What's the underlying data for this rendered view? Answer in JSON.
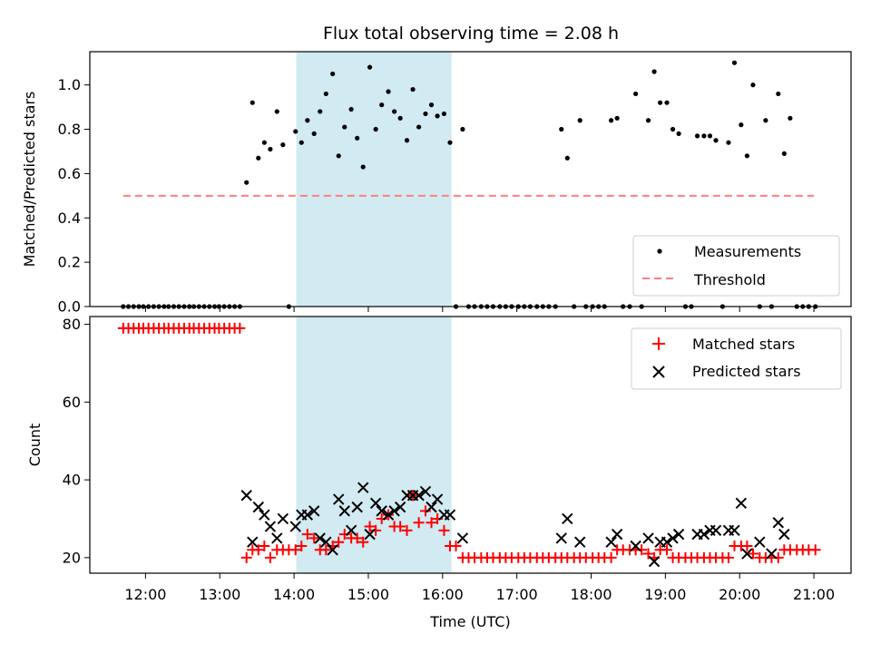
{
  "figure": {
    "title": "Flux total observing time = 2.08 h"
  },
  "chart_data": [
    {
      "type": "scatter",
      "panel": "top",
      "ylabel": "Matched/Predicted stars",
      "xlabel": "",
      "xlim": [
        11.25,
        21.5
      ],
      "ylim": [
        0.0,
        1.15
      ],
      "yticks": [
        0.0,
        0.2,
        0.4,
        0.6,
        0.8,
        1.0
      ],
      "xticks": [
        12,
        13,
        14,
        15,
        16,
        17,
        18,
        19,
        20,
        21
      ],
      "xtick_labels": [
        "12:00",
        "13:00",
        "14:00",
        "15:00",
        "16:00",
        "17:00",
        "18:00",
        "19:00",
        "20:00",
        "21:00"
      ],
      "shaded_interval": {
        "x": [
          14.03,
          16.12
        ],
        "color": "#add8e6"
      },
      "legend_position": "lower right",
      "series": [
        {
          "name": "Measurements",
          "marker": "dot",
          "color": "#000000",
          "x": [
            11.7,
            11.77,
            11.84,
            11.91,
            11.97,
            12.04,
            12.11,
            12.18,
            12.25,
            12.31,
            12.38,
            12.45,
            12.52,
            12.59,
            12.65,
            12.72,
            12.79,
            12.86,
            12.93,
            12.99,
            13.06,
            13.13,
            13.2,
            13.27,
            13.36,
            13.44,
            13.52,
            13.6,
            13.68,
            13.77,
            13.85,
            13.93,
            14.02,
            14.1,
            14.18,
            14.27,
            14.35,
            14.43,
            14.52,
            14.6,
            14.68,
            14.77,
            14.85,
            14.93,
            15.02,
            15.1,
            15.18,
            15.27,
            15.35,
            15.43,
            15.52,
            15.6,
            15.68,
            15.77,
            15.85,
            15.93,
            16.02,
            16.1,
            16.18,
            16.27,
            16.35,
            16.43,
            16.52,
            16.6,
            16.68,
            16.77,
            16.85,
            16.93,
            17.02,
            17.1,
            17.18,
            17.27,
            17.35,
            17.43,
            17.52,
            17.6,
            17.68,
            17.77,
            17.85,
            17.93,
            18.02,
            18.1,
            18.18,
            18.27,
            18.35,
            18.43,
            18.52,
            18.6,
            18.68,
            18.77,
            18.85,
            18.93,
            19.02,
            19.1,
            19.18,
            19.27,
            19.35,
            19.43,
            19.52,
            19.6,
            19.68,
            19.77,
            19.85,
            19.93,
            20.02,
            20.1,
            20.18,
            20.27,
            20.35,
            20.43,
            20.52,
            20.6,
            20.68,
            20.77,
            20.85,
            20.93,
            21.02
          ],
          "y": [
            0,
            0,
            0,
            0,
            0,
            0,
            0,
            0,
            0,
            0,
            0,
            0,
            0,
            0,
            0,
            0,
            0,
            0,
            0,
            0,
            0,
            0,
            0,
            0,
            0.56,
            0.92,
            0.67,
            0.74,
            0.71,
            0.88,
            0.73,
            0.0,
            0.79,
            0.74,
            0.84,
            0.78,
            0.88,
            0.96,
            1.05,
            0.68,
            0.81,
            0.89,
            0.76,
            0.63,
            1.08,
            0.8,
            0.91,
            0.97,
            0.88,
            0.85,
            0.75,
            0.98,
            0.81,
            0.87,
            0.91,
            0.86,
            0.87,
            0.74,
            0,
            0.8,
            0,
            0,
            0,
            0,
            0,
            0,
            0,
            0,
            0,
            0,
            0,
            0,
            0,
            0,
            0,
            0.8,
            0.67,
            0,
            0.84,
            0,
            0,
            0,
            0,
            0.84,
            0.85,
            0,
            0,
            0.96,
            0,
            0.84,
            1.06,
            0.92,
            0.92,
            0.8,
            0.78,
            0,
            0,
            0.77,
            0.77,
            0.77,
            0.75,
            0,
            0.74,
            1.1,
            0.82,
            0.68,
            1.0,
            0,
            0.84,
            0,
            0.96,
            0.69,
            0.85,
            0,
            0,
            0,
            0
          ]
        },
        {
          "name": "Threshold",
          "marker": "dashed-line",
          "color": "#ff7f7f",
          "x": [
            11.7,
            21.0
          ],
          "y": [
            0.5,
            0.5
          ]
        }
      ]
    },
    {
      "type": "scatter",
      "panel": "bottom",
      "ylabel": "Count",
      "xlabel": "Time (UTC)",
      "xlim": [
        11.25,
        21.5
      ],
      "ylim": [
        16,
        82
      ],
      "yticks": [
        20,
        40,
        60,
        80
      ],
      "xticks": [
        12,
        13,
        14,
        15,
        16,
        17,
        18,
        19,
        20,
        21
      ],
      "xtick_labels": [
        "12:00",
        "13:00",
        "14:00",
        "15:00",
        "16:00",
        "17:00",
        "18:00",
        "19:00",
        "20:00",
        "21:00"
      ],
      "shaded_interval": {
        "x": [
          14.03,
          16.12
        ],
        "color": "#add8e6"
      },
      "legend_position": "upper right",
      "series": [
        {
          "name": "Matched stars",
          "marker": "plus",
          "color": "#ff0000",
          "x": [
            11.7,
            11.77,
            11.84,
            11.91,
            11.97,
            12.04,
            12.11,
            12.18,
            12.25,
            12.31,
            12.38,
            12.45,
            12.52,
            12.59,
            12.65,
            12.72,
            12.79,
            12.86,
            12.93,
            12.99,
            13.06,
            13.13,
            13.2,
            13.27,
            13.36,
            13.44,
            13.52,
            13.6,
            13.68,
            13.77,
            13.85,
            13.93,
            14.02,
            14.1,
            14.18,
            14.27,
            14.35,
            14.43,
            14.52,
            14.6,
            14.68,
            14.77,
            14.85,
            14.93,
            15.02,
            15.1,
            15.18,
            15.27,
            15.35,
            15.43,
            15.52,
            15.6,
            15.68,
            15.77,
            15.85,
            15.93,
            16.02,
            16.1,
            16.18,
            16.27,
            16.35,
            16.43,
            16.52,
            16.6,
            16.68,
            16.77,
            16.85,
            16.93,
            17.02,
            17.1,
            17.18,
            17.27,
            17.35,
            17.43,
            17.52,
            17.6,
            17.68,
            17.77,
            17.85,
            17.93,
            18.02,
            18.1,
            18.18,
            18.27,
            18.35,
            18.43,
            18.52,
            18.6,
            18.68,
            18.77,
            18.85,
            18.93,
            19.02,
            19.1,
            19.18,
            19.27,
            19.35,
            19.43,
            19.52,
            19.6,
            19.68,
            19.77,
            19.85,
            19.93,
            20.02,
            20.1,
            20.18,
            20.27,
            20.35,
            20.43,
            20.52,
            20.6,
            20.68,
            20.77,
            20.85,
            20.93,
            21.02
          ],
          "y": [
            79,
            79,
            79,
            79,
            79,
            79,
            79,
            79,
            79,
            79,
            79,
            79,
            79,
            79,
            79,
            79,
            79,
            79,
            79,
            79,
            79,
            79,
            79,
            79,
            20,
            22,
            22,
            23,
            20,
            22,
            22,
            22,
            22,
            23,
            26,
            25,
            22,
            22,
            23,
            24,
            26,
            25,
            25,
            24,
            28,
            27,
            30,
            31,
            28,
            28,
            27,
            36,
            29,
            32,
            29,
            30,
            27,
            23,
            23,
            20,
            20,
            20,
            20,
            20,
            20,
            20,
            20,
            20,
            20,
            20,
            20,
            20,
            20,
            20,
            20,
            20,
            20,
            20,
            20,
            20,
            20,
            20,
            20,
            20,
            22,
            22,
            22,
            22,
            22,
            21,
            20,
            22,
            22,
            20,
            20,
            20,
            20,
            20,
            20,
            20,
            20,
            20,
            20,
            23,
            23,
            23,
            21,
            20,
            20,
            20,
            20,
            22,
            22,
            22,
            22,
            22,
            22
          ]
        },
        {
          "name": "Predicted stars",
          "marker": "x",
          "color": "#000000",
          "x": [
            13.36,
            13.44,
            13.52,
            13.6,
            13.68,
            13.77,
            13.85,
            14.02,
            14.1,
            14.18,
            14.27,
            14.35,
            14.43,
            14.52,
            14.6,
            14.68,
            14.77,
            14.85,
            14.93,
            15.02,
            15.1,
            15.18,
            15.27,
            15.35,
            15.43,
            15.52,
            15.6,
            15.68,
            15.77,
            15.85,
            15.93,
            16.02,
            16.1,
            16.27,
            17.6,
            17.68,
            17.85,
            18.27,
            18.35,
            18.6,
            18.77,
            18.85,
            18.93,
            19.02,
            19.1,
            19.18,
            19.43,
            19.52,
            19.6,
            19.68,
            19.85,
            19.93,
            20.02,
            20.1,
            20.27,
            20.43,
            20.52,
            20.6
          ],
          "y": [
            36,
            24,
            33,
            31,
            28,
            25,
            30,
            28,
            31,
            31,
            32,
            25,
            24,
            22,
            35,
            32,
            27,
            33,
            38,
            26,
            34,
            32,
            31,
            32,
            33,
            36,
            36,
            36,
            37,
            33,
            35,
            31,
            31,
            25,
            25,
            30,
            24,
            24,
            26,
            23,
            25,
            19,
            24,
            24,
            25,
            26,
            26,
            26,
            27,
            27,
            27,
            27,
            34,
            21,
            24,
            21,
            29,
            26
          ]
        }
      ]
    }
  ]
}
